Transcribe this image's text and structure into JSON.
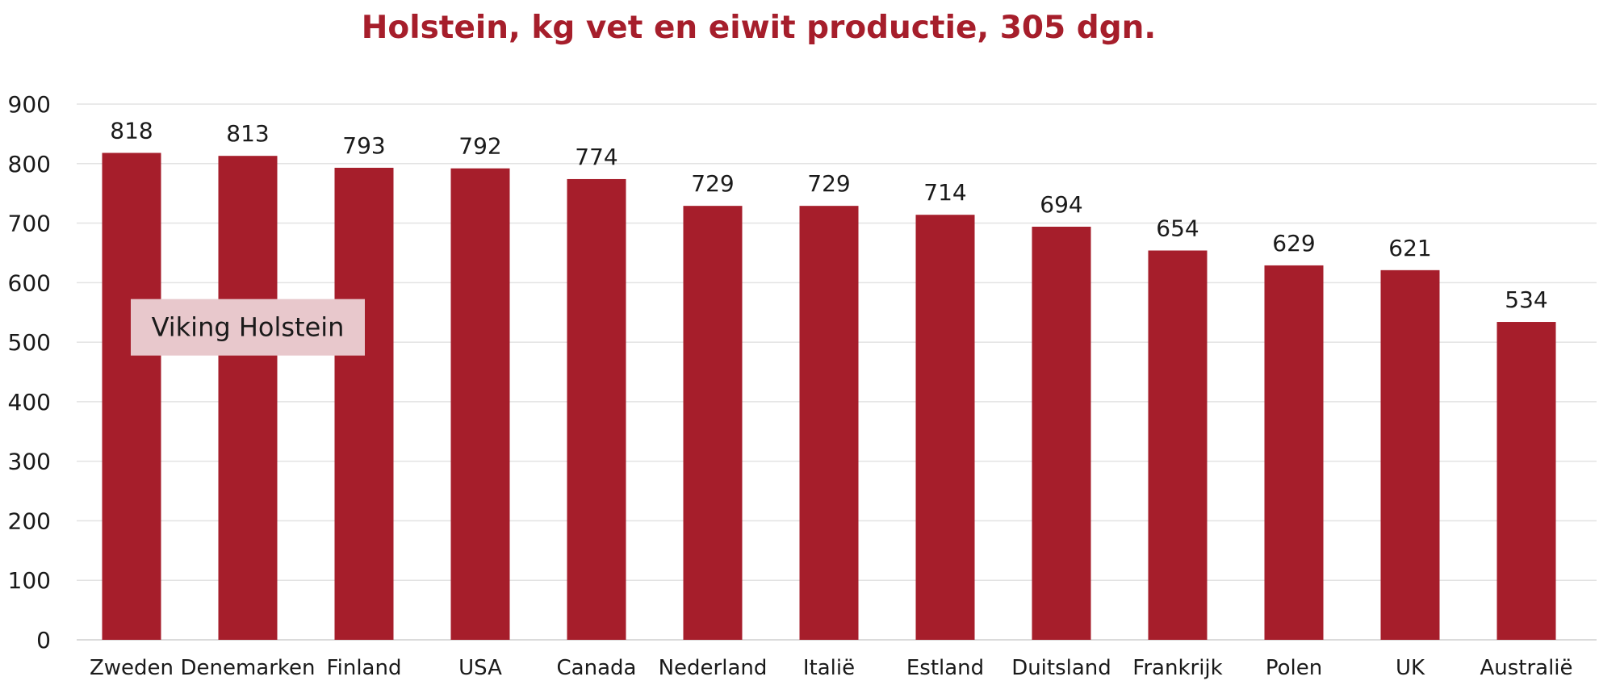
{
  "chart_data": {
    "type": "bar",
    "title": "Holstein, kg vet en eiwit productie, 305 dgn.",
    "xlabel": "",
    "ylabel": "",
    "categories": [
      "Zweden",
      "Denemarken",
      "Finland",
      "USA",
      "Canada",
      "Nederland",
      "Italië",
      "Estland",
      "Duitsland",
      "Frankrijk",
      "Polen",
      "UK",
      "Australië"
    ],
    "values": [
      818,
      813,
      793,
      792,
      774,
      729,
      729,
      714,
      694,
      654,
      629,
      621,
      534
    ],
    "data_labels": [
      "818",
      "813",
      "793",
      "792",
      "774",
      "729",
      "729",
      "714",
      "694",
      "654",
      "629",
      "621",
      "534"
    ],
    "ylim": [
      0,
      900
    ],
    "yticks": [
      0,
      100,
      200,
      300,
      400,
      500,
      600,
      700,
      800,
      900
    ],
    "ytick_labels": [
      "0",
      "100",
      "200",
      "300",
      "400",
      "500",
      "600",
      "700",
      "800",
      "900"
    ],
    "grid": true,
    "legend": "none",
    "annotation": {
      "text": "Viking Holstein",
      "spans_categories": [
        "Zweden",
        "Denemarken",
        "Finland"
      ],
      "at_value": 525
    },
    "colors": {
      "bar": "#a61e2b",
      "title": "#a61e2b",
      "grid": "#e3e3e3",
      "annotation_fill": "#e8c8cc"
    }
  }
}
